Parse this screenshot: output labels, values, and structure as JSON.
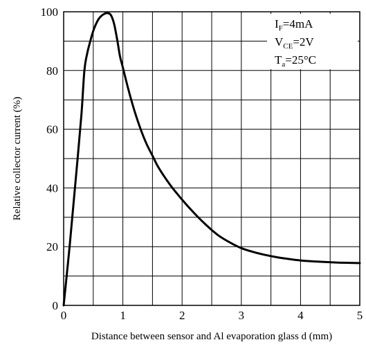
{
  "chart_data": {
    "type": "line",
    "title": "",
    "xlabel": "Distance between sensor and Al evaporation glass d (mm)",
    "ylabel": "Relative collector current (%)",
    "xlim": [
      0,
      5
    ],
    "ylim": [
      0,
      100
    ],
    "x_ticks": [
      0,
      1,
      2,
      3,
      4,
      5
    ],
    "y_ticks": [
      0,
      20,
      40,
      60,
      80,
      100
    ],
    "x_grid_step": 0.5,
    "y_grid_step": 10,
    "grid": true,
    "legend": "none",
    "line_color": "#000000",
    "conditions": [
      {
        "main": "I",
        "sub": "F",
        "value": "=4mA"
      },
      {
        "main": "V",
        "sub": "CE",
        "value": "=2V"
      },
      {
        "main": "T",
        "sub": "a",
        "value": "=25°C"
      }
    ],
    "series": [
      {
        "x": [
          0,
          0.1,
          0.2,
          0.3,
          0.35,
          0.4,
          0.45,
          0.5,
          0.55,
          0.6,
          0.65,
          0.7,
          0.75,
          0.8,
          0.85,
          0.9,
          0.95,
          1.0,
          1.1,
          1.2,
          1.3,
          1.4,
          1.5,
          1.6,
          1.8,
          2.0,
          2.2,
          2.4,
          2.6,
          2.8,
          3.0,
          3.2,
          3.4,
          3.6,
          3.8,
          4.0,
          4.2,
          4.4,
          4.6,
          4.8,
          5.0
        ],
        "values": [
          0,
          20,
          42,
          65,
          80,
          86,
          90,
          93.5,
          96,
          97.8,
          98.8,
          99.4,
          99.5,
          98.8,
          96,
          91,
          85,
          81,
          73,
          66,
          60,
          55,
          51,
          47,
          41,
          36,
          31.5,
          27.5,
          24,
          21.5,
          19.5,
          18.2,
          17.2,
          16.4,
          15.8,
          15.3,
          15,
          14.8,
          14.6,
          14.5,
          14.4
        ]
      }
    ]
  }
}
